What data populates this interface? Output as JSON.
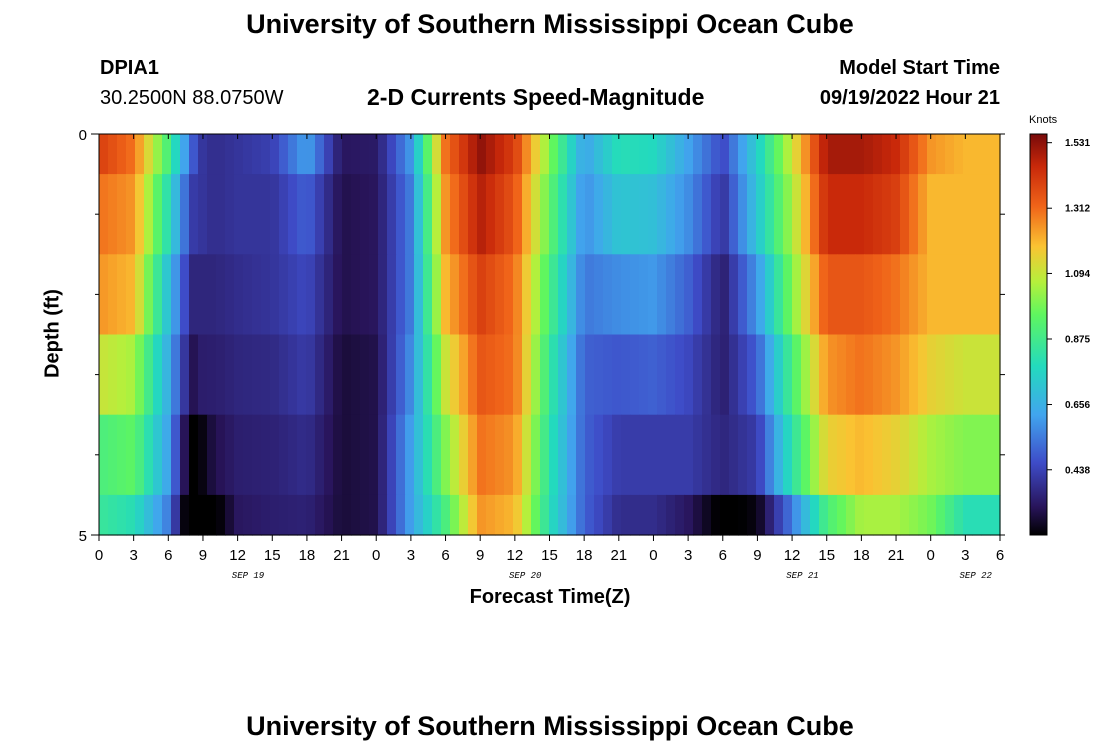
{
  "header": {
    "title": "University of Southern Mississippi Ocean Cube",
    "station_id": "DPIA1",
    "coords": "30.2500N  88.0750W",
    "subtitle": "2-D Currents Speed-Magnitude",
    "model_start_label": "Model Start Time",
    "model_start_value": "09/19/2022 Hour 21"
  },
  "footer": {
    "title": "University of Southern Mississippi Ocean Cube"
  },
  "chart_data": {
    "type": "heatmap",
    "xlabel": "Forecast Time(Z)",
    "ylabel": "Depth (ft)",
    "ylim": [
      0,
      5
    ],
    "y_ticks": [
      "0",
      "5"
    ],
    "x_tick_labels": [
      "0",
      "3",
      "6",
      "9",
      "12",
      "15",
      "18",
      "21",
      "0",
      "3",
      "6",
      "9",
      "12",
      "15",
      "18",
      "21",
      "0",
      "3",
      "6",
      "9",
      "12",
      "15",
      "18",
      "21",
      "0",
      "3",
      "6"
    ],
    "date_labels": [
      {
        "label": "SEP 19",
        "tick_index": 4.3
      },
      {
        "label": "SEP 20",
        "tick_index": 12.3
      },
      {
        "label": "SEP 21",
        "tick_index": 20.3
      },
      {
        "label": "SEP 22",
        "tick_index": 25.3
      }
    ],
    "colorbar": {
      "unit": "Knots",
      "min": 0.22,
      "max": 1.56,
      "ticks": [
        "1.531",
        "1.312",
        "1.094",
        "0.875",
        "0.656",
        "0.438"
      ],
      "tick_values": [
        1.531,
        1.312,
        1.094,
        0.875,
        0.656,
        0.438
      ]
    },
    "depth_bins": 5,
    "hours": [
      0,
      3,
      6,
      8,
      9,
      10,
      12,
      15,
      18,
      21,
      24,
      27,
      30,
      33,
      36,
      39,
      42,
      45,
      48,
      51,
      54,
      57,
      60,
      63,
      66,
      69,
      72,
      75,
      78
    ],
    "profiles": [
      [
        1.4,
        1.3,
        0.9,
        0.5,
        0.4,
        0.38,
        0.4,
        0.43,
        0.62,
        0.32,
        0.33,
        0.6,
        1.3,
        1.53,
        1.4,
        1.0,
        0.62,
        0.8,
        0.78,
        0.62,
        0.45,
        0.75,
        1.1,
        1.5,
        1.5,
        1.45,
        1.25,
        1.2,
        1.2
      ],
      [
        1.3,
        1.25,
        0.8,
        0.42,
        0.4,
        0.38,
        0.4,
        0.4,
        0.5,
        0.3,
        0.32,
        0.55,
        1.25,
        1.48,
        1.35,
        0.95,
        0.58,
        0.72,
        0.7,
        0.58,
        0.4,
        0.72,
        1.05,
        1.45,
        1.45,
        1.4,
        1.2,
        1.2,
        1.2
      ],
      [
        1.25,
        1.2,
        0.7,
        0.36,
        0.36,
        0.36,
        0.38,
        0.4,
        0.45,
        0.3,
        0.32,
        0.55,
        1.2,
        1.4,
        1.3,
        0.9,
        0.54,
        0.58,
        0.6,
        0.5,
        0.34,
        0.6,
        1.0,
        1.35,
        1.35,
        1.3,
        1.2,
        1.2,
        1.2
      ],
      [
        1.1,
        1.05,
        0.65,
        0.3,
        0.34,
        0.34,
        0.36,
        0.37,
        0.42,
        0.28,
        0.3,
        0.58,
        1.1,
        1.35,
        1.3,
        0.85,
        0.5,
        0.48,
        0.5,
        0.45,
        0.34,
        0.5,
        0.9,
        1.25,
        1.3,
        1.25,
        1.15,
        1.1,
        1.1
      ],
      [
        0.9,
        0.95,
        0.62,
        0.18,
        0.24,
        0.3,
        0.34,
        0.35,
        0.38,
        0.28,
        0.3,
        0.62,
        1.0,
        1.3,
        1.25,
        0.82,
        0.5,
        0.42,
        0.42,
        0.42,
        0.36,
        0.42,
        0.82,
        1.15,
        1.2,
        1.15,
        1.05,
        1.0,
        1.0
      ],
      [
        0.85,
        0.8,
        0.55,
        0.1,
        0.0,
        0.2,
        0.32,
        0.34,
        0.35,
        0.28,
        0.3,
        0.62,
        0.9,
        1.25,
        1.2,
        0.8,
        0.5,
        0.38,
        0.38,
        0.32,
        0.2,
        0.24,
        0.55,
        0.9,
        1.05,
        1.05,
        0.98,
        0.8,
        0.8
      ]
    ]
  }
}
